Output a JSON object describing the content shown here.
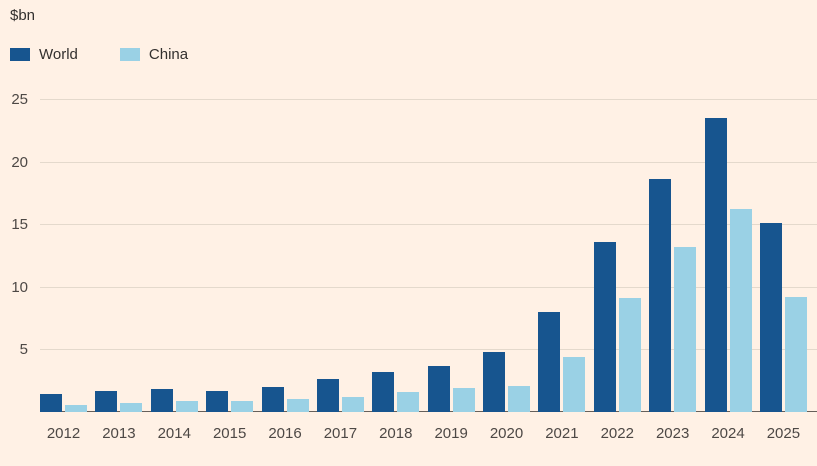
{
  "chart_data": {
    "type": "bar",
    "title": "",
    "ylabel": "$bn",
    "xlabel": "",
    "categories": [
      "2012",
      "2013",
      "2014",
      "2015",
      "2016",
      "2017",
      "2018",
      "2019",
      "2020",
      "2021",
      "2022",
      "2023",
      "2024",
      "2025"
    ],
    "series": [
      {
        "name": "World",
        "color": "#17558F",
        "values": [
          1.4,
          1.7,
          1.8,
          1.7,
          2.0,
          2.6,
          3.2,
          3.7,
          4.8,
          8.0,
          13.6,
          18.6,
          23.5,
          15.1
        ]
      },
      {
        "name": "China",
        "color": "#9AD1E5",
        "values": [
          0.6,
          0.7,
          0.85,
          0.9,
          1.0,
          1.2,
          1.6,
          1.9,
          2.1,
          4.4,
          9.1,
          13.2,
          16.2,
          9.2
        ]
      }
    ],
    "ylim": [
      0,
      25
    ],
    "yticks": [
      5,
      10,
      15,
      20,
      25
    ],
    "grid": true,
    "legend_position": "top-left",
    "background_color": "#FFF1E5",
    "grid_color": "#E4D9CC",
    "axis_line_color": "#66605B",
    "text_color": "#4D4845"
  }
}
